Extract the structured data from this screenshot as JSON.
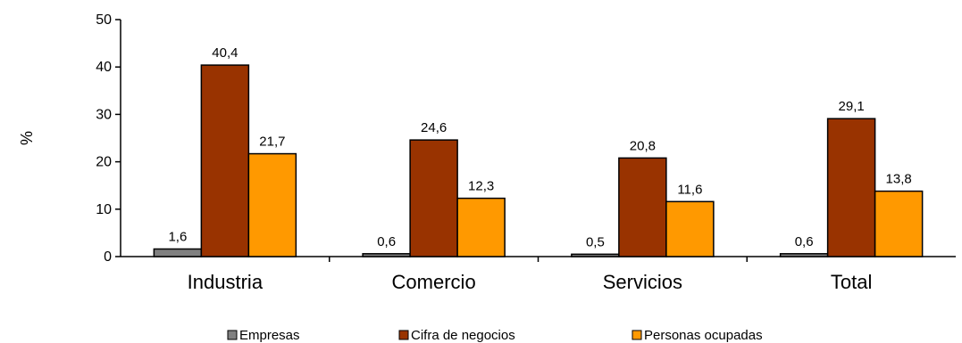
{
  "chart_data": {
    "type": "bar",
    "ylabel": "%",
    "ylim": [
      0,
      50
    ],
    "yticks": [
      "0",
      "10",
      "20",
      "30",
      "40",
      "50"
    ],
    "ytick_values": [
      0,
      10,
      20,
      30,
      40,
      50
    ],
    "categories": [
      "Industria",
      "Comercio",
      "Servicios",
      "Total"
    ],
    "legend_position": "bottom",
    "grid": false,
    "series": [
      {
        "name": "Empresas",
        "color": "#808080",
        "values": [
          1.6,
          0.6,
          0.5,
          0.6
        ],
        "labels": [
          "1,6",
          "0,6",
          "0,5",
          "0,6"
        ]
      },
      {
        "name": "Cifra de negocios",
        "color": "#993300",
        "values": [
          40.4,
          24.6,
          20.8,
          29.1
        ],
        "labels": [
          "40,4",
          "24,6",
          "20,8",
          "29,1"
        ]
      },
      {
        "name": "Personas ocupadas",
        "color": "#ff9900",
        "values": [
          21.7,
          12.3,
          11.6,
          13.8
        ],
        "labels": [
          "21,7",
          "12,3",
          "11,6",
          "13,8"
        ]
      }
    ]
  }
}
